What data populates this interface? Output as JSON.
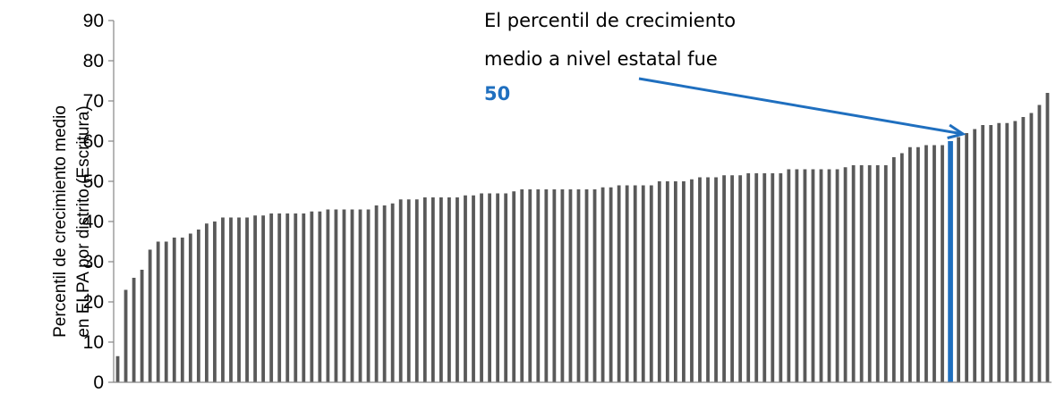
{
  "chart_data": {
    "type": "bar",
    "title": "",
    "xlabel": "",
    "ylabel": [
      "Percentil de crecimiento medio",
      "en ELPA por distrito (Escritura)"
    ],
    "ylim": [
      0,
      90
    ],
    "yticks": [
      0,
      10,
      20,
      30,
      40,
      50,
      60,
      70,
      80,
      90
    ],
    "grid": false,
    "bar_color": "#595959",
    "highlight_color": "#1f6fbf",
    "highlight_index": 103,
    "values": [
      6.5,
      23,
      26,
      28,
      33,
      35,
      35,
      36,
      36,
      37,
      38,
      39.5,
      40,
      41,
      41,
      41,
      41,
      41.5,
      41.5,
      42,
      42,
      42,
      42,
      42,
      42.5,
      42.5,
      43,
      43,
      43,
      43,
      43,
      43,
      44,
      44,
      44.5,
      45.5,
      45.5,
      45.5,
      46,
      46,
      46,
      46,
      46,
      46.5,
      46.5,
      47,
      47,
      47,
      47,
      47.5,
      48,
      48,
      48,
      48,
      48,
      48,
      48,
      48,
      48,
      48,
      48.5,
      48.5,
      49,
      49,
      49,
      49,
      49,
      50,
      50,
      50,
      50,
      50.5,
      51,
      51,
      51,
      51.5,
      51.5,
      51.5,
      52,
      52,
      52,
      52,
      52,
      53,
      53,
      53,
      53,
      53,
      53,
      53,
      53.5,
      54,
      54,
      54,
      54,
      54,
      56,
      57,
      58.5,
      58.5,
      59,
      59,
      59,
      60,
      61,
      62,
      63,
      64,
      64,
      64.5,
      64.5,
      65,
      66,
      67,
      69,
      72
    ]
  },
  "annotation": {
    "line1": "El percentil de crecimiento",
    "line2": "medio a nivel estatal fue",
    "value": "50"
  }
}
